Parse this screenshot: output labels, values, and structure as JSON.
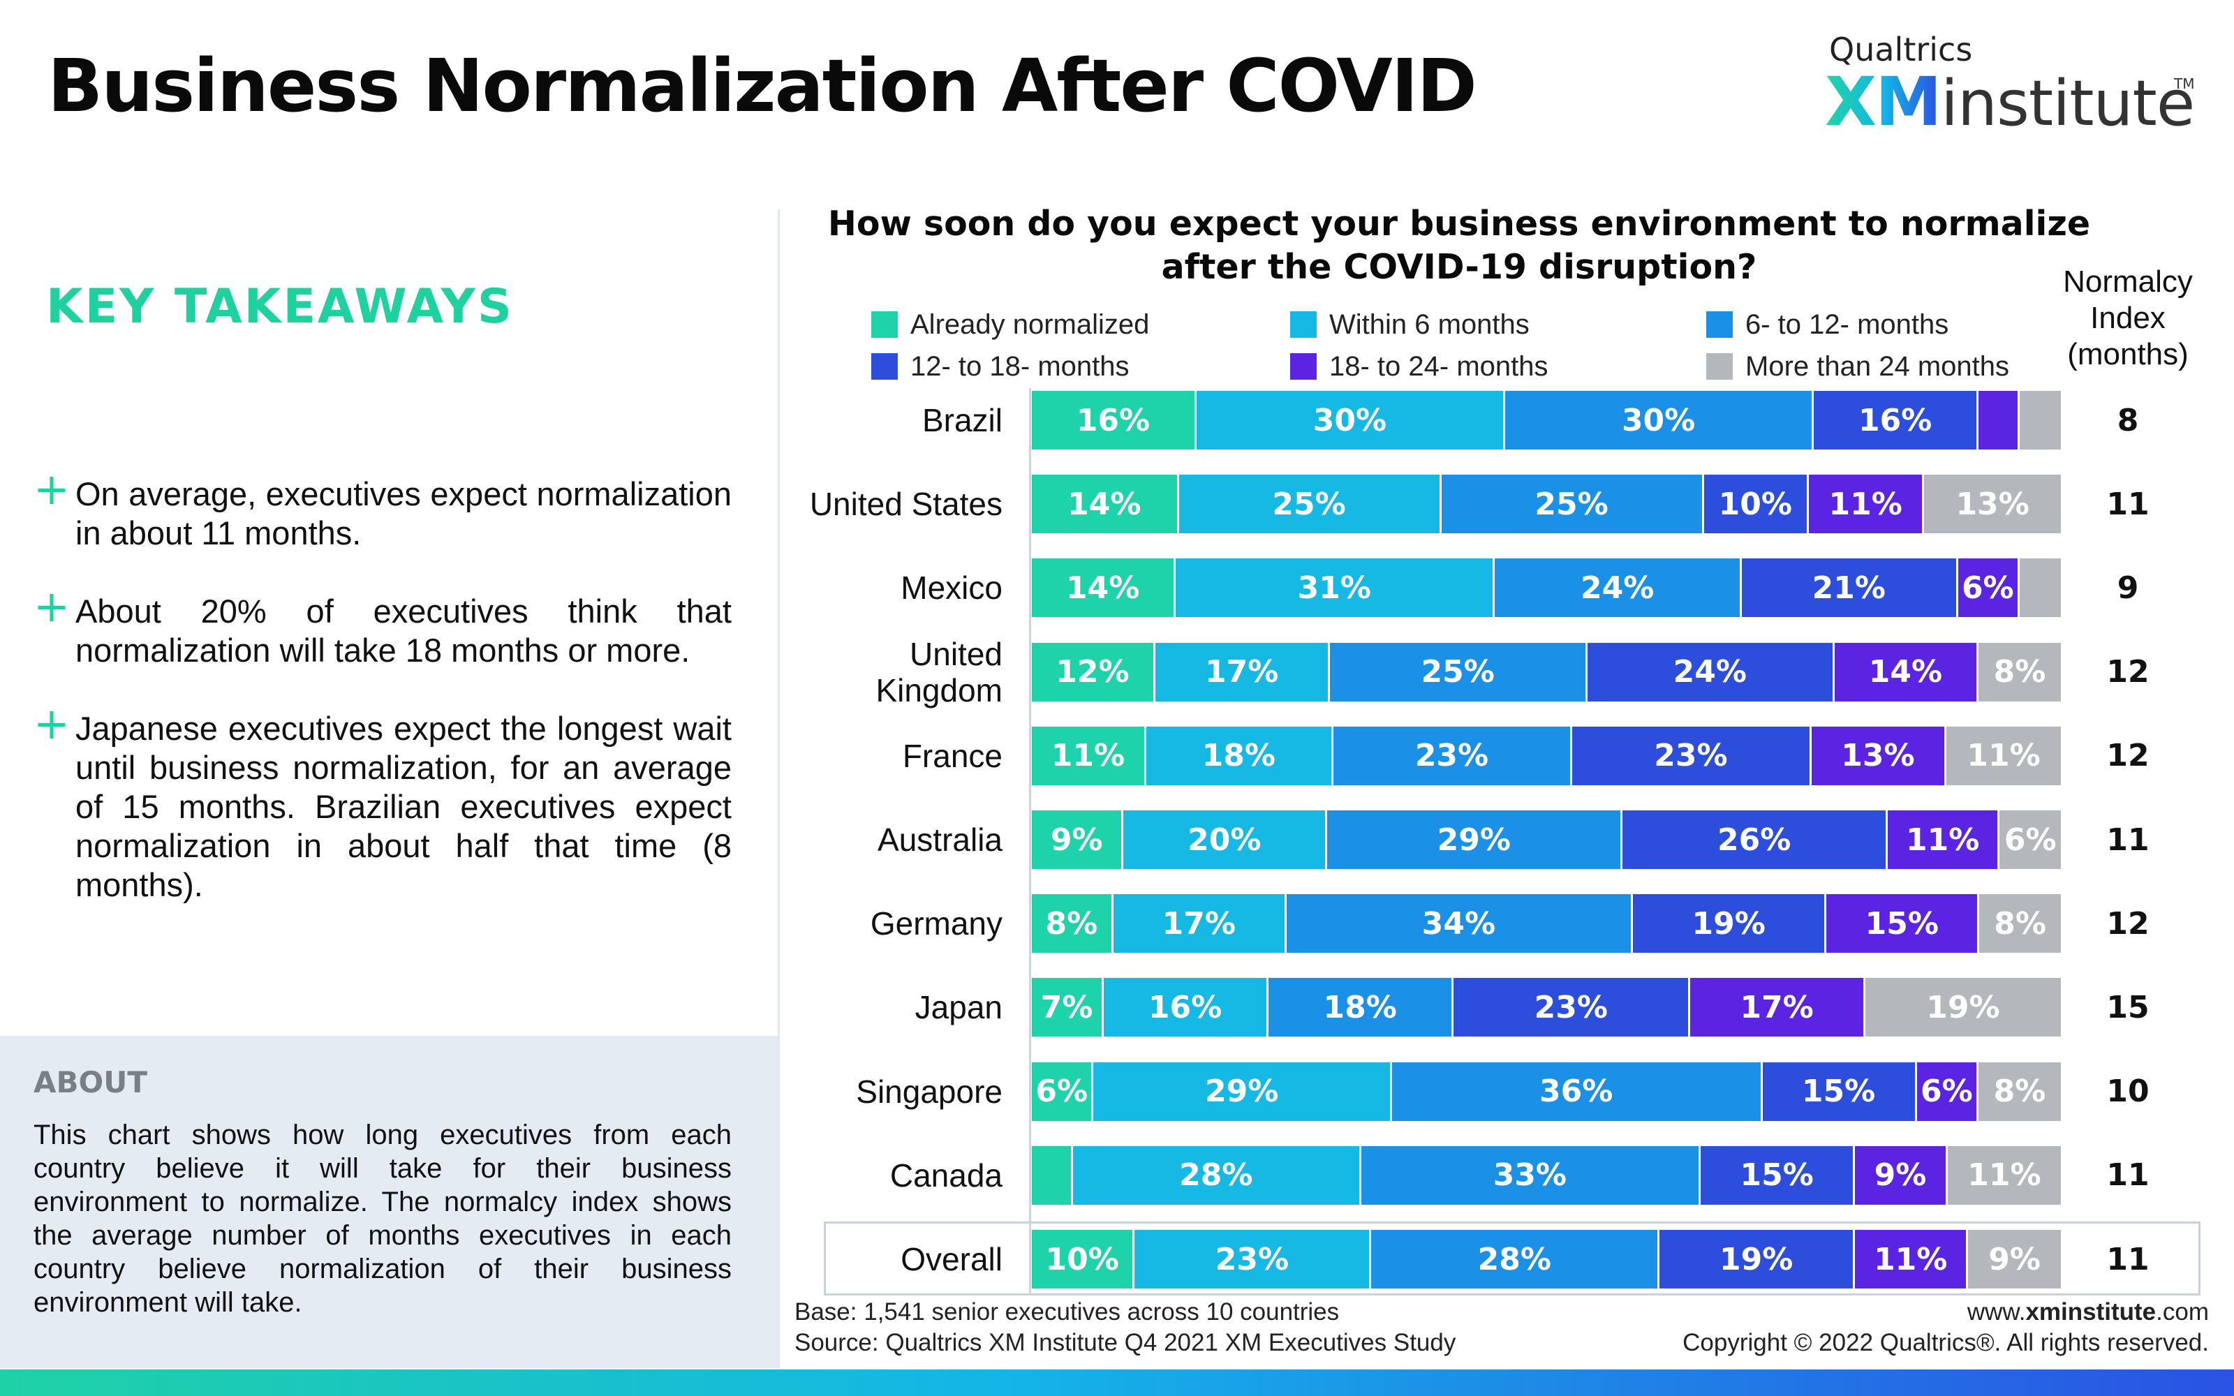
{
  "header": {
    "title": "Business Normalization After COVID",
    "logo_brand": "Qualtrics",
    "logo_xm": "XM",
    "logo_institute": "institute",
    "logo_tm": "TM"
  },
  "takeaways": {
    "heading": "KEY TAKEAWAYS",
    "items": [
      "On average, executives expect normalization in about 11 months.",
      "About 20% of executives think that normalization will take 18 months or more.",
      "Japanese executives expect the longest wait until business normalization, for an average of 15 months. Brazilian executives expect normalization in about half that time (8 months)."
    ]
  },
  "about": {
    "heading": "ABOUT",
    "text": "This chart shows how long executives from each country believe it will take for their business environment to normalize. The normalcy index shows the average number of months executives in each country believe normalization of their business environment will take."
  },
  "index_header": "Normalcy Index (months)",
  "footer": {
    "base": "Base: 1,541 senior executives across 10 countries",
    "source": "Source: Qualtrics XM Institute Q4 2021 XM Executives Study",
    "url_prefix": "www.",
    "url_bold": "xminstitute",
    "url_suffix": ".com",
    "copyright": "Copyright © 2022 Qualtrics®. All rights reserved."
  },
  "chart_data": {
    "type": "bar",
    "orientation": "horizontal",
    "stacked": true,
    "percent": true,
    "title": "How soon do you expect your business environment to normalize after the COVID-19 disruption?",
    "categories": [
      "Brazil",
      "United States",
      "Mexico",
      "United Kingdom",
      "France",
      "Australia",
      "Germany",
      "Japan",
      "Singapore",
      "Canada",
      "Overall"
    ],
    "category_lines": [
      [
        "Brazil"
      ],
      [
        "United States"
      ],
      [
        "Mexico"
      ],
      [
        "United",
        "Kingdom"
      ],
      [
        "France"
      ],
      [
        "Australia"
      ],
      [
        "Germany"
      ],
      [
        "Japan"
      ],
      [
        "Singapore"
      ],
      [
        "Canada"
      ],
      [
        "Overall"
      ]
    ],
    "series": [
      {
        "name": "Already normalized",
        "color": "#1ed2a9",
        "values": [
          16,
          14,
          14,
          12,
          11,
          9,
          8,
          7,
          6,
          4,
          10
        ],
        "labels": [
          "16%",
          "14%",
          "14%",
          "12%",
          "11%",
          "9%",
          "8%",
          "7%",
          "6%",
          "",
          "10%"
        ]
      },
      {
        "name": "Within 6 months",
        "color": "#15b9e4",
        "values": [
          30,
          25,
          31,
          17,
          18,
          20,
          17,
          16,
          29,
          28,
          23
        ],
        "labels": [
          "30%",
          "25%",
          "31%",
          "17%",
          "18%",
          "20%",
          "17%",
          "16%",
          "29%",
          "28%",
          "23%"
        ]
      },
      {
        "name": "6- to 12- months",
        "color": "#1a90e6",
        "values": [
          30,
          25,
          24,
          25,
          23,
          29,
          34,
          18,
          36,
          33,
          28
        ],
        "labels": [
          "30%",
          "25%",
          "24%",
          "25%",
          "23%",
          "29%",
          "34%",
          "18%",
          "36%",
          "33%",
          "28%"
        ]
      },
      {
        "name": "12- to 18- months",
        "color": "#2d4ddd",
        "values": [
          16,
          10,
          21,
          24,
          23,
          26,
          19,
          23,
          15,
          15,
          19
        ],
        "labels": [
          "16%",
          "10%",
          "21%",
          "24%",
          "23%",
          "26%",
          "19%",
          "23%",
          "15%",
          "15%",
          "19%"
        ]
      },
      {
        "name": "18- to 24- months",
        "color": "#5b24e2",
        "values": [
          4,
          11,
          6,
          14,
          13,
          11,
          15,
          17,
          6,
          9,
          11
        ],
        "labels": [
          "",
          "11%",
          "6%",
          "14%",
          "13%",
          "11%",
          "15%",
          "17%",
          "6%",
          "9%",
          "11%"
        ]
      },
      {
        "name": "More than 24 months",
        "color": "#b4b7bc",
        "values": [
          4,
          13,
          4,
          8,
          11,
          6,
          8,
          19,
          8,
          11,
          9
        ],
        "labels": [
          "",
          "13%",
          "",
          "8%",
          "11%",
          "6%",
          "8%",
          "19%",
          "8%",
          "11%",
          "9%"
        ]
      }
    ],
    "normalcy_index": [
      8,
      11,
      9,
      12,
      12,
      11,
      12,
      15,
      10,
      11,
      11
    ],
    "legend_position": "top",
    "grid": false
  }
}
